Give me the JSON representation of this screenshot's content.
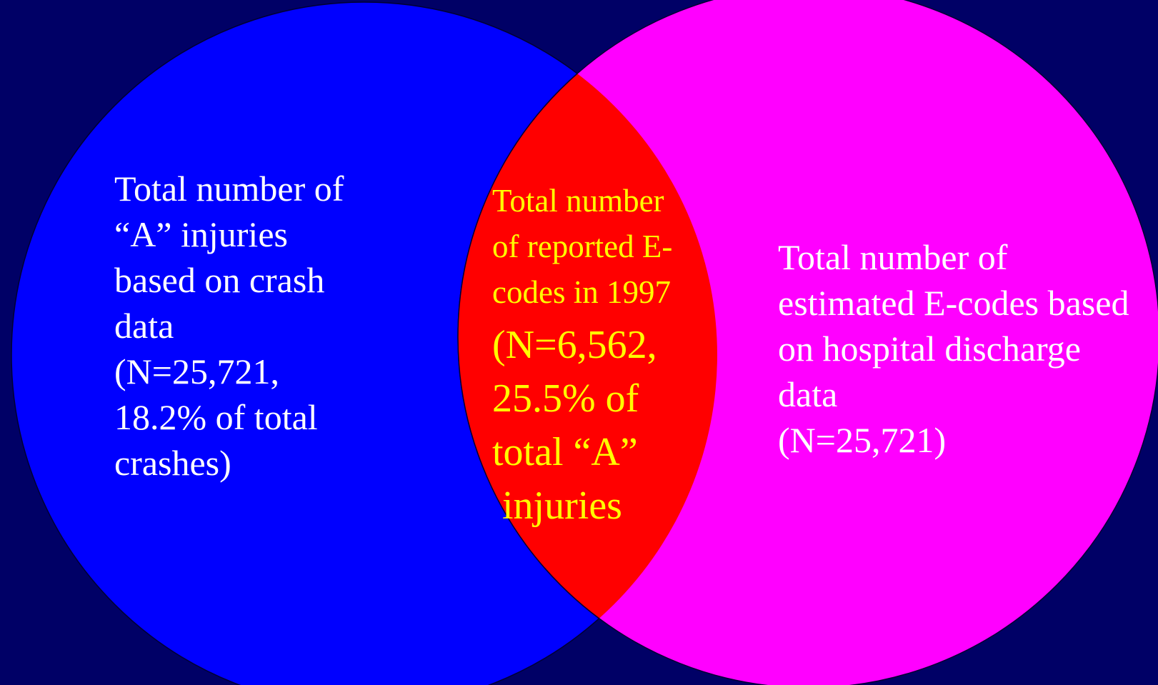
{
  "regions": {
    "left": {
      "lines": [
        "Total number of",
        "“A” injuries",
        "based on crash",
        "data",
        "(N=25,721,",
        "18.2% of total",
        "crashes)"
      ]
    },
    "center": {
      "lines": [
        "Total number",
        "of reported E-",
        "codes in 1997"
      ],
      "emphasis": [
        "(N=6,562,",
        "25.5% of",
        "total “A”",
        " injuries"
      ]
    },
    "right": {
      "lines": [
        "Total number of",
        "estimated E-codes based",
        "on hospital discharge",
        "data",
        "(N=25,721)"
      ]
    }
  }
}
